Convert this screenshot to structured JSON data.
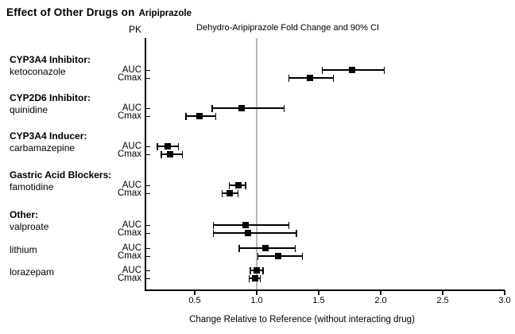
{
  "title": {
    "main": "Effect of Other Drugs on",
    "drug": "Aripiprazole"
  },
  "column_headers": {
    "pk": "PK",
    "value_axis": "Dehydro-Aripiprazole Fold Change and 90% CI"
  },
  "colors": {
    "marker": "#000000",
    "reference_line": "#b9b9b9",
    "axis": "#000000"
  },
  "chart_data": {
    "type": "forest",
    "title": "Effect of Other Drugs on Aripiprazole",
    "subtitle": "Dehydro-Aripiprazole Fold Change and 90% CI",
    "ci_level": "90%",
    "xlabel": "Change Relative to Reference (without interacting drug)",
    "xlim": [
      0.1,
      3.0
    ],
    "xticks": [
      0.5,
      1.0,
      1.5,
      2.0,
      2.5,
      3.0
    ],
    "xtick_labels": [
      "0.5",
      "1.0",
      "1.5",
      "2.0",
      "2.5",
      "3.0"
    ],
    "reference_line": 1.0,
    "metrics": [
      "AUC",
      "Cmax"
    ],
    "grid": false,
    "groups": [
      {
        "header": "CYP3A4 Inhibitor:",
        "drugs": [
          {
            "name": "ketoconazole",
            "AUC": {
              "value": 1.77,
              "ci": [
                1.53,
                2.03
              ]
            },
            "Cmax": {
              "value": 1.43,
              "ci": [
                1.26,
                1.62
              ]
            }
          }
        ]
      },
      {
        "header": "CYP2D6 Inhibitor:",
        "drugs": [
          {
            "name": "quinidine",
            "AUC": {
              "value": 0.88,
              "ci": [
                0.64,
                1.22
              ]
            },
            "Cmax": {
              "value": 0.54,
              "ci": [
                0.43,
                0.67
              ]
            }
          }
        ]
      },
      {
        "header": "CYP3A4 Inducer:",
        "drugs": [
          {
            "name": "carbamazepine",
            "AUC": {
              "value": 0.28,
              "ci": [
                0.2,
                0.37
              ]
            },
            "Cmax": {
              "value": 0.3,
              "ci": [
                0.23,
                0.4
              ]
            }
          }
        ]
      },
      {
        "header": "Gastric Acid Blockers:",
        "drugs": [
          {
            "name": "famotidine",
            "AUC": {
              "value": 0.85,
              "ci": [
                0.78,
                0.91
              ]
            },
            "Cmax": {
              "value": 0.78,
              "ci": [
                0.72,
                0.85
              ]
            }
          }
        ]
      },
      {
        "header": "Other:",
        "drugs": [
          {
            "name": "valproate",
            "AUC": {
              "value": 0.91,
              "ci": [
                0.65,
                1.26
              ]
            },
            "Cmax": {
              "value": 0.93,
              "ci": [
                0.65,
                1.32
              ]
            }
          },
          {
            "name": "lithium",
            "AUC": {
              "value": 1.07,
              "ci": [
                0.86,
                1.31
              ]
            },
            "Cmax": {
              "value": 1.17,
              "ci": [
                1.01,
                1.37
              ]
            }
          },
          {
            "name": "lorazepam",
            "AUC": {
              "value": 1.0,
              "ci": [
                0.95,
                1.05
              ]
            },
            "Cmax": {
              "value": 0.99,
              "ci": [
                0.94,
                1.03
              ]
            }
          }
        ]
      }
    ]
  }
}
